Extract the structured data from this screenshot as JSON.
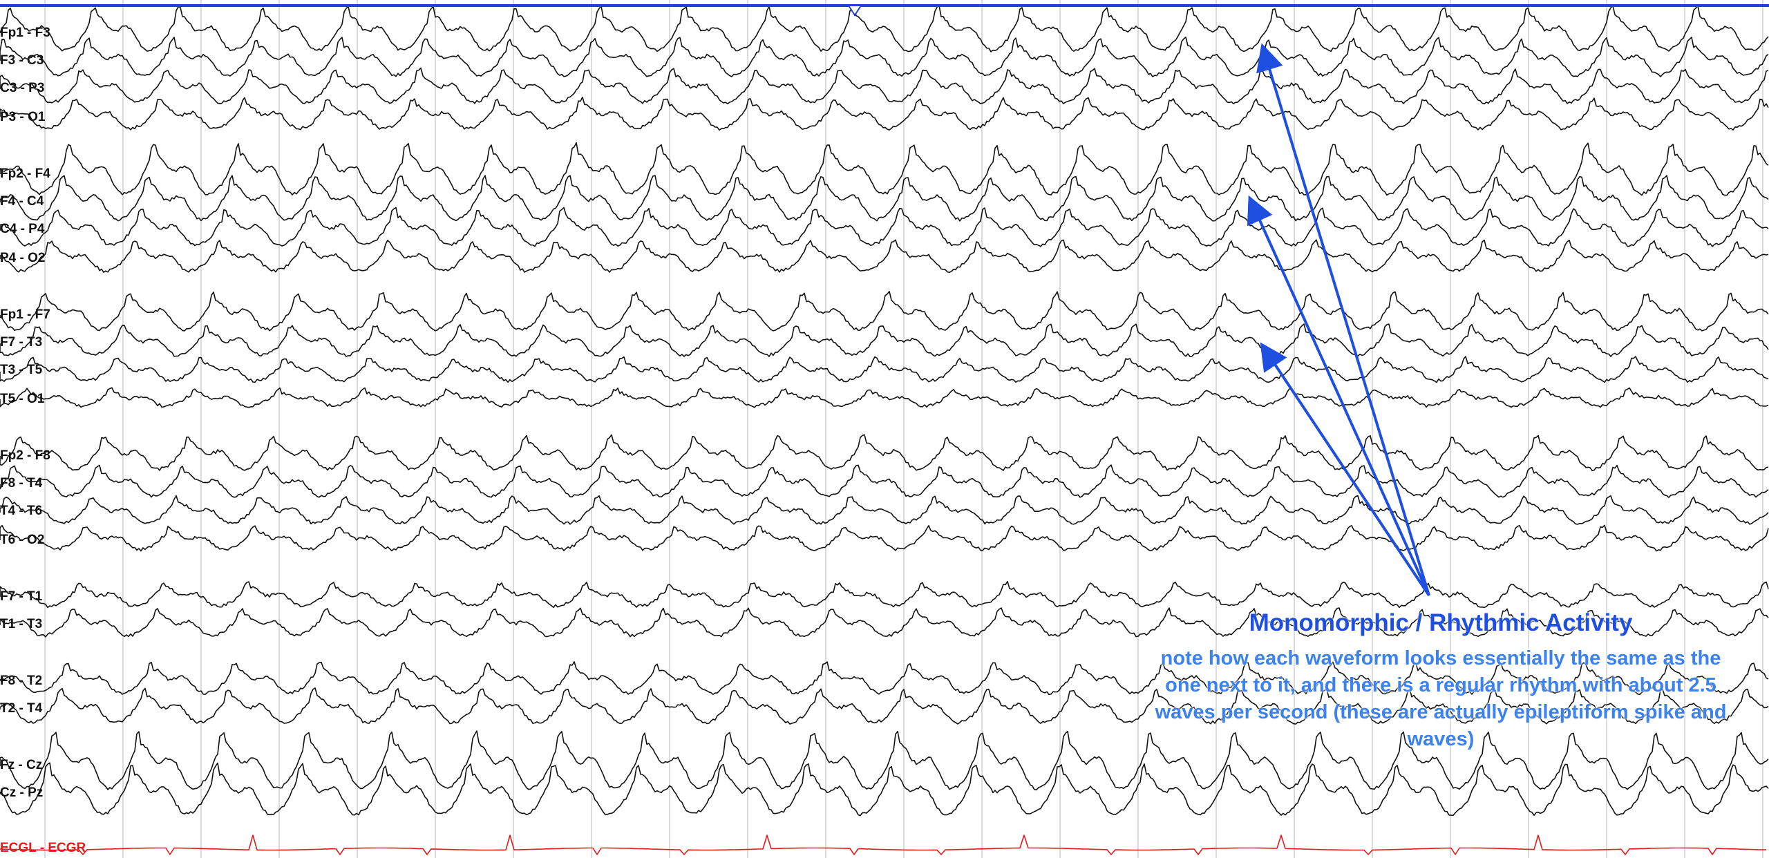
{
  "channels": [
    {
      "label": "Fp1 - F3"
    },
    {
      "label": "F3 - C3"
    },
    {
      "label": "C3 - P3"
    },
    {
      "label": "P3 - O1"
    },
    {
      "label": "Fp2 - F4"
    },
    {
      "label": "F4 - C4"
    },
    {
      "label": "C4 - P4"
    },
    {
      "label": "P4 - O2"
    },
    {
      "label": "Fp1 - F7"
    },
    {
      "label": "F7 - T3"
    },
    {
      "label": "T3 - T5"
    },
    {
      "label": "T5 - O1"
    },
    {
      "label": "Fp2 - F8"
    },
    {
      "label": "F8 - T4"
    },
    {
      "label": "T4 - T6"
    },
    {
      "label": "T6 - O2"
    },
    {
      "label": "F7 - T1"
    },
    {
      "label": "T1 - T3"
    },
    {
      "label": "F8 - T2"
    },
    {
      "label": "T2 - T4"
    },
    {
      "label": "Fz - Cz"
    },
    {
      "label": "Cz - Pz"
    },
    {
      "label": "ECGL - ECGR",
      "type": "ecg"
    }
  ],
  "annotation": {
    "title": "Monomorphic / Rhythmic Activity",
    "note": "note how each waveform looks essentially the same as the one next to it, and there is a regular rhythm with about 2.5 waves per second (these are actually epileptiform spike and waves)"
  },
  "colors": {
    "trace": "#111111",
    "ecg_trace": "#e31b1b",
    "gridline": "#cfcfcf",
    "top_bar": "#1f3fe0",
    "arrow": "#1f4fe0",
    "title": "#1f4fe0",
    "note": "#3b82f0"
  }
}
